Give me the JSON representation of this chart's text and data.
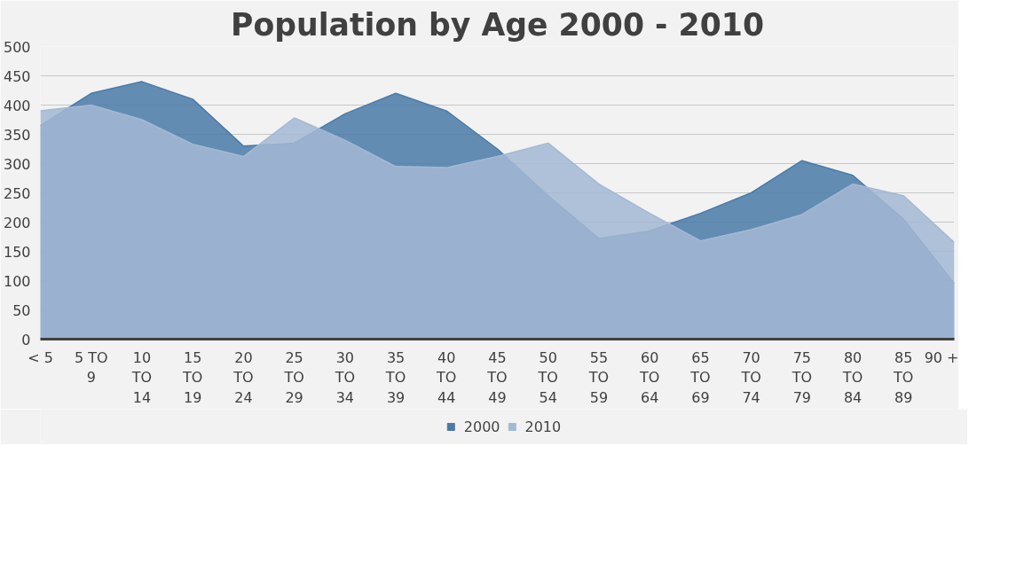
{
  "chart_data": {
    "type": "area",
    "title": "Population by Age 2000 - 2010",
    "categories": [
      "< 5",
      "5 TO 9",
      "10 TO 14",
      "15 TO 19",
      "20 TO 24",
      "25 TO 29",
      "30 TO 34",
      "35 TO 39",
      "40 TO 44",
      "45 TO 49",
      "50 TO 54",
      "55 TO 59",
      "60 TO 64",
      "65 TO 69",
      "70 TO 74",
      "75 TO 79",
      "80 TO 84",
      "85 TO 89",
      "90 +"
    ],
    "series": [
      {
        "name": "2000",
        "color": "#4a7aa8",
        "values": [
          365,
          420,
          440,
          410,
          330,
          335,
          385,
          420,
          390,
          325,
          245,
          172,
          185,
          215,
          250,
          305,
          280,
          205,
          95
        ]
      },
      {
        "name": "2010",
        "color": "#a3b9d4",
        "values": [
          390,
          400,
          375,
          333,
          312,
          378,
          340,
          295,
          293,
          312,
          335,
          265,
          215,
          168,
          187,
          213,
          265,
          245,
          165
        ]
      }
    ],
    "ylim": [
      0,
      500
    ],
    "yticks": [
      0,
      50,
      100,
      150,
      200,
      250,
      300,
      350,
      400,
      450,
      500
    ],
    "grid": "y",
    "legend": "bottom"
  }
}
